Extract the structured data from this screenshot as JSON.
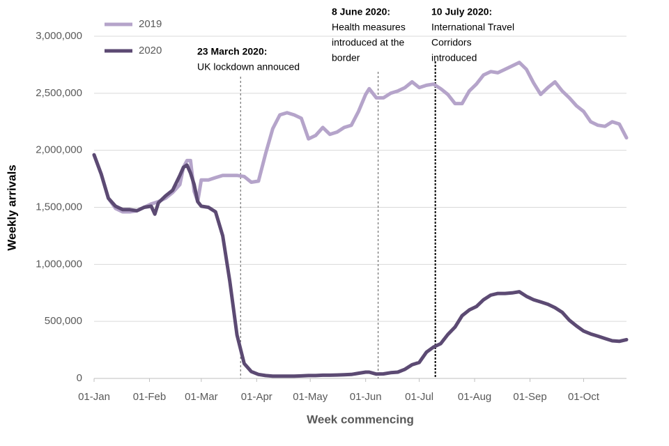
{
  "chart_data": {
    "type": "line",
    "y_label": "Weekly arrivals",
    "x_label": "Week commencing",
    "x": [
      0,
      4,
      8,
      12,
      16,
      20,
      24,
      28,
      32,
      34,
      36,
      40,
      44,
      48,
      50,
      52,
      54,
      56,
      58,
      60,
      64,
      68,
      72,
      76,
      80,
      84,
      88,
      92,
      96,
      100,
      104,
      108,
      112,
      116,
      120,
      124,
      128,
      132,
      136,
      140,
      144,
      148,
      152,
      154,
      158,
      162,
      166,
      170,
      174,
      178,
      182,
      186,
      190,
      194,
      198,
      202,
      206,
      210,
      214,
      218,
      222,
      226,
      230,
      234,
      238,
      242,
      246,
      250,
      254,
      258,
      262,
      266,
      270,
      274,
      278,
      282,
      286,
      290,
      294,
      298
    ],
    "series": [
      {
        "name": "2019",
        "color": "#b5a4ca",
        "values": [
          1960000,
          1790000,
          1580000,
          1490000,
          1460000,
          1460000,
          1470000,
          1500000,
          1530000,
          1540000,
          1550000,
          1580000,
          1630000,
          1700000,
          1850000,
          1910000,
          1910000,
          1640000,
          1550000,
          1740000,
          1740000,
          1760000,
          1780000,
          1780000,
          1780000,
          1770000,
          1720000,
          1730000,
          1970000,
          2190000,
          2310000,
          2330000,
          2310000,
          2280000,
          2100000,
          2130000,
          2200000,
          2140000,
          2160000,
          2200000,
          2220000,
          2340000,
          2490000,
          2540000,
          2460000,
          2460000,
          2500000,
          2520000,
          2550000,
          2600000,
          2550000,
          2570000,
          2580000,
          2540000,
          2490000,
          2410000,
          2410000,
          2520000,
          2580000,
          2660000,
          2690000,
          2680000,
          2710000,
          2740000,
          2770000,
          2710000,
          2590000,
          2490000,
          2550000,
          2600000,
          2520000,
          2460000,
          2390000,
          2340000,
          2250000,
          2220000,
          2210000,
          2250000,
          2230000,
          2110000
        ]
      },
      {
        "name": "2020",
        "color": "#5c4a73",
        "values": [
          1960000,
          1790000,
          1580000,
          1510000,
          1480000,
          1480000,
          1470000,
          1500000,
          1510000,
          1440000,
          1540000,
          1600000,
          1650000,
          1780000,
          1850000,
          1870000,
          1800000,
          1700000,
          1550000,
          1510000,
          1500000,
          1460000,
          1250000,
          850000,
          380000,
          130000,
          60000,
          35000,
          25000,
          20000,
          20000,
          20000,
          20000,
          22000,
          25000,
          25000,
          28000,
          28000,
          30000,
          32000,
          35000,
          45000,
          55000,
          55000,
          38000,
          40000,
          50000,
          55000,
          80000,
          120000,
          140000,
          230000,
          275000,
          305000,
          385000,
          450000,
          550000,
          600000,
          630000,
          690000,
          730000,
          745000,
          745000,
          750000,
          760000,
          720000,
          690000,
          670000,
          650000,
          620000,
          580000,
          510000,
          460000,
          415000,
          390000,
          370000,
          350000,
          330000,
          325000,
          340000
        ]
      }
    ],
    "xlim": [
      0,
      298
    ],
    "xticks": [
      {
        "value": 0,
        "label": "01-Jan"
      },
      {
        "value": 31,
        "label": "01-Feb"
      },
      {
        "value": 60,
        "label": "01-Mar"
      },
      {
        "value": 91,
        "label": "01-Apr"
      },
      {
        "value": 121,
        "label": "01-May"
      },
      {
        "value": 152,
        "label": "01-Jun"
      },
      {
        "value": 182,
        "label": "01-Jul"
      },
      {
        "value": 213,
        "label": "01-Aug"
      },
      {
        "value": 244,
        "label": "01-Sep"
      },
      {
        "value": 274,
        "label": "01-Oct"
      }
    ],
    "ylim": [
      0,
      3000000
    ],
    "yticks": [
      0,
      {
        "value": 500000,
        "label": "500,000"
      },
      {
        "value": 1000000,
        "label": "1,000,000"
      },
      {
        "value": 1500000,
        "label": "1,500,000"
      },
      {
        "value": 2000000,
        "label": "2,000,000"
      },
      {
        "value": 2500000,
        "label": "2,500,000"
      },
      {
        "value": 3000000,
        "label": "3,000,000"
      }
    ],
    "grid": true,
    "legend": "top-left",
    "annotations": [
      {
        "x": 82,
        "title": "23 March 2020:",
        "lines": [
          "UK lockdown annouced"
        ]
      },
      {
        "x": 159,
        "title": "8 June 2020:",
        "lines": [
          "Health measures",
          "introduced at the",
          "border"
        ]
      },
      {
        "x": 191,
        "title": "10 July 2020:",
        "lines": [
          "International Travel",
          "Corridors",
          "introduced"
        ]
      }
    ]
  }
}
